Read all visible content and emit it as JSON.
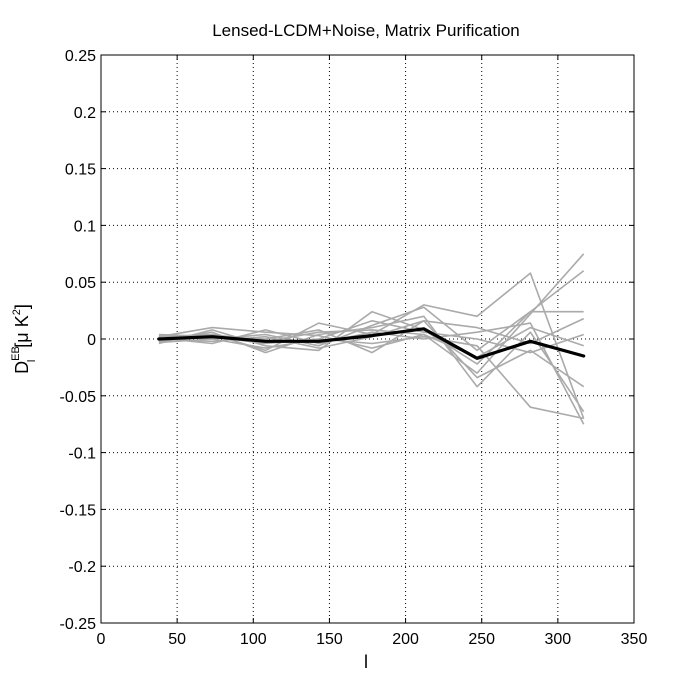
{
  "chart_data": {
    "type": "line",
    "title": "Lensed-LCDM+Noise, Matrix Purification",
    "xlabel": "l",
    "ylabel": {
      "main": "D",
      "subscript": "l",
      "superscript": "EB",
      "unit_open": "[",
      "unit_mu": "μ",
      "unit_K": " K",
      "unit_exp": "2",
      "unit_close": "]"
    },
    "xlim": [
      0,
      350
    ],
    "ylim": [
      -0.25,
      0.25
    ],
    "xticks": [
      0,
      50,
      100,
      150,
      200,
      250,
      300,
      350
    ],
    "xtick_labels": [
      "0",
      "50",
      "100",
      "150",
      "200",
      "250",
      "300",
      "350"
    ],
    "yticks": [
      -0.25,
      -0.2,
      -0.15,
      -0.1,
      -0.05,
      0,
      0.05,
      0.1,
      0.15,
      0.2,
      0.25
    ],
    "ytick_labels": [
      "-0.25",
      "-0.2",
      "-0.15",
      "-0.1",
      "-0.05",
      "0",
      "0.05",
      "0.1",
      "0.15",
      "0.2",
      "0.25"
    ],
    "grid": true,
    "x": [
      38,
      73,
      108,
      143,
      178,
      212,
      247,
      282,
      317
    ],
    "realization_color": "#aaaaaa",
    "mean_color": "#000000",
    "realizations": [
      [
        0.002,
        0.01,
        0.006,
        0.003,
        -0.008,
        0.004,
        -0.03,
        0.022,
        0.075
      ],
      [
        -0.002,
        0.004,
        -0.01,
        0.014,
        0.004,
        0.03,
        0.02,
        0.058,
        -0.07
      ],
      [
        0.003,
        0.0,
        0.004,
        -0.006,
        0.012,
        0.028,
        -0.01,
        0.024,
        0.024
      ],
      [
        -0.004,
        0.008,
        -0.006,
        -0.01,
        0.024,
        0.008,
        -0.022,
        0.024,
        0.06
      ],
      [
        0.0,
        0.002,
        0.0,
        0.008,
        -0.012,
        0.016,
        -0.034,
        -0.01,
        -0.042
      ],
      [
        0.001,
        -0.004,
        0.008,
        -0.004,
        0.006,
        0.0,
        0.006,
        0.014,
        -0.075
      ],
      [
        -0.002,
        0.006,
        -0.012,
        0.004,
        0.01,
        0.02,
        -0.042,
        0.006,
        -0.064
      ],
      [
        0.004,
        0.002,
        -0.004,
        0.0,
        -0.004,
        0.002,
        -0.006,
        -0.06,
        -0.07
      ],
      [
        0.0,
        -0.002,
        0.002,
        -0.008,
        0.002,
        0.016,
        0.01,
        -0.004,
        0.018
      ],
      [
        0.002,
        0.004,
        -0.002,
        0.006,
        0.008,
        0.004,
        -0.016,
        0.01,
        -0.006
      ],
      [
        -0.003,
        0.0,
        -0.008,
        0.0,
        0.016,
        0.006,
        0.0,
        -0.012,
        0.004
      ]
    ],
    "mean": [
      0.0,
      0.002,
      -0.002,
      -0.002,
      0.003,
      0.009,
      -0.017,
      -0.002,
      -0.015
    ]
  }
}
